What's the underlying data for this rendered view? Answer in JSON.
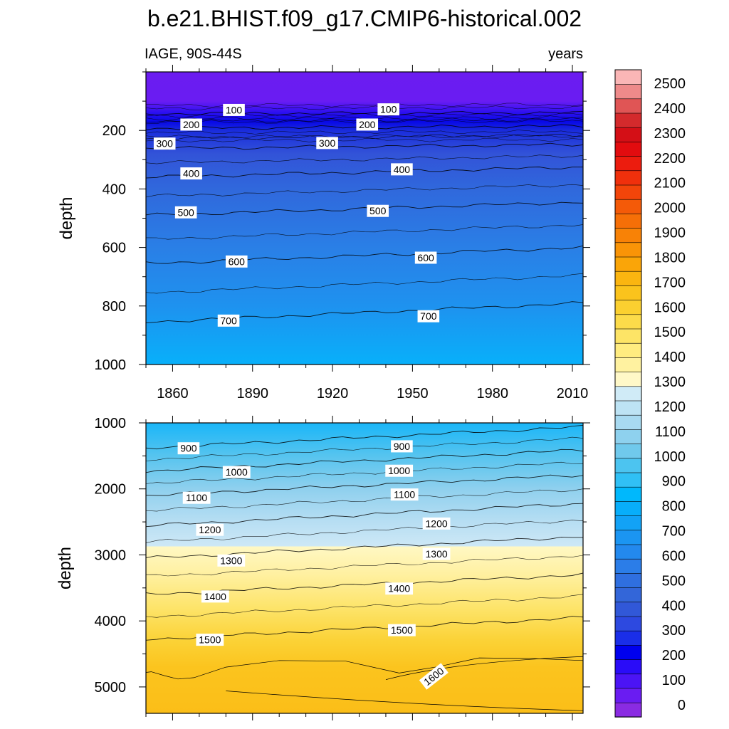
{
  "chart_data": {
    "type": "heatmap",
    "title": "b.e21.BHIST.f09_g17.CMIP6-historical.002",
    "left_subtitle": "IAGE, 90S-44S",
    "right_subtitle": "years",
    "xlabel": "",
    "xlim": [
      1850,
      2014
    ],
    "x_ticks": [
      1860,
      1890,
      1920,
      1950,
      1980,
      2010
    ],
    "x_tick_labels": [
      "1860",
      "1890",
      "1920",
      "1950",
      "1980",
      "2010"
    ],
    "colorbar": {
      "levels": [
        0,
        100,
        200,
        300,
        400,
        500,
        600,
        700,
        800,
        900,
        1000,
        1100,
        1200,
        1300,
        1400,
        1500,
        1600,
        1700,
        1800,
        1900,
        2000,
        2100,
        2200,
        2300,
        2400,
        2500
      ],
      "labels": [
        "0",
        "100",
        "200",
        "300",
        "400",
        "500",
        "600",
        "700",
        "800",
        "900",
        "1000",
        "1100",
        "1200",
        "1300",
        "1400",
        "1500",
        "1600",
        "1700",
        "1800",
        "1900",
        "2000",
        "2100",
        "2200",
        "2300",
        "2400",
        "2500"
      ],
      "colors": [
        "#8a2be2",
        "#6a1cf2",
        "#4b14f5",
        "#2a0cf8",
        "#0000ee",
        "#1a2ee8",
        "#2d49e0",
        "#3158d8",
        "#3366d9",
        "#2f6fe0",
        "#2b7de8",
        "#2389ee",
        "#1b95f2",
        "#12a2f6",
        "#08aefa",
        "#00b8fc",
        "#30c0f5",
        "#4cc4f0",
        "#70c9ec",
        "#8ed1ee",
        "#a8daf1",
        "#bde3f4",
        "#d0ebf7",
        "#fff8c8",
        "#fff2a0",
        "#ffec80",
        "#fde466",
        "#fcdb4a",
        "#fbd030",
        "#fbc31c",
        "#fbb510",
        "#faa508",
        "#f99407",
        "#f88206",
        "#f66f07",
        "#f45a08",
        "#f2450a",
        "#f0300c",
        "#ec1c0e",
        "#e20c0f",
        "#d40f16",
        "#d42a2c",
        "#e05555",
        "#ee8a8a",
        "#fab6b6"
      ]
    },
    "panels": [
      {
        "name": "upper",
        "ylabel": "depth",
        "ylim": [
          0,
          1000
        ],
        "y_ticks": [
          200,
          400,
          600,
          800,
          1000
        ],
        "y_tick_labels": [
          "200",
          "400",
          "600",
          "800",
          "1000"
        ],
        "fill_stops": [
          {
            "depth": 0,
            "color": "#6b1cf0"
          },
          {
            "depth": 100,
            "color": "#6a1cf2"
          },
          {
            "depth": 140,
            "color": "#2a10f0"
          },
          {
            "depth": 170,
            "color": "#0808e8"
          },
          {
            "depth": 200,
            "color": "#1a2cdc"
          },
          {
            "depth": 280,
            "color": "#3253d8"
          },
          {
            "depth": 400,
            "color": "#3068dc"
          },
          {
            "depth": 600,
            "color": "#2a7fe6"
          },
          {
            "depth": 800,
            "color": "#1e92ef"
          },
          {
            "depth": 1000,
            "color": "#08b0fa"
          }
        ],
        "contour_lines": [
          {
            "level": 100,
            "start_depth": 143,
            "end_depth": 140
          },
          {
            "level": 200,
            "start_depth": 193,
            "end_depth": 185
          },
          {
            "level": 300,
            "start_depth": 262,
            "end_depth": 248
          },
          {
            "level": 400,
            "start_depth": 360,
            "end_depth": 325
          },
          {
            "level": 500,
            "start_depth": 490,
            "end_depth": 445
          },
          {
            "level": 600,
            "start_depth": 655,
            "end_depth": 600
          },
          {
            "level": 700,
            "start_depth": 855,
            "end_depth": 790
          }
        ],
        "contour_labels": [
          {
            "text": "100",
            "x": 1883,
            "depth": 130
          },
          {
            "text": "100",
            "x": 1941,
            "depth": 128
          },
          {
            "text": "200",
            "x": 1867,
            "depth": 180
          },
          {
            "text": "200",
            "x": 1933,
            "depth": 180
          },
          {
            "text": "300",
            "x": 1857,
            "depth": 245
          },
          {
            "text": "300",
            "x": 1918,
            "depth": 243
          },
          {
            "text": "400",
            "x": 1867,
            "depth": 347
          },
          {
            "text": "400",
            "x": 1946,
            "depth": 333
          },
          {
            "text": "500",
            "x": 1865,
            "depth": 480
          },
          {
            "text": "500",
            "x": 1937,
            "depth": 475
          },
          {
            "text": "600",
            "x": 1884,
            "depth": 648
          },
          {
            "text": "600",
            "x": 1955,
            "depth": 635
          },
          {
            "text": "700",
            "x": 1881,
            "depth": 850
          },
          {
            "text": "700",
            "x": 1956,
            "depth": 835
          }
        ]
      },
      {
        "name": "lower",
        "ylabel": "depth",
        "ylim": [
          1000,
          5400
        ],
        "y_ticks": [
          1000,
          2000,
          3000,
          4000,
          5000
        ],
        "y_tick_labels": [
          "1000",
          "2000",
          "3000",
          "4000",
          "5000"
        ],
        "fill_stops": [
          {
            "depth": 1000,
            "color": "#1ab6f8"
          },
          {
            "depth": 1500,
            "color": "#56c4ef"
          },
          {
            "depth": 2000,
            "color": "#8fd0ee"
          },
          {
            "depth": 2500,
            "color": "#b7def3"
          },
          {
            "depth": 2870,
            "color": "#cde8f6"
          },
          {
            "depth": 2871,
            "color": "#fff8c4"
          },
          {
            "depth": 3300,
            "color": "#fff0a0"
          },
          {
            "depth": 3800,
            "color": "#fde46a"
          },
          {
            "depth": 4300,
            "color": "#fbd236"
          },
          {
            "depth": 4700,
            "color": "#fbc41e"
          },
          {
            "depth": 5400,
            "color": "#fbbe18"
          }
        ],
        "contour_lines": [
          {
            "level": 900,
            "start_depth": 1380,
            "end_depth": 1060
          },
          {
            "level": 1000,
            "start_depth": 1730,
            "end_depth": 1410
          },
          {
            "level": 1100,
            "start_depth": 2100,
            "end_depth": 1790
          },
          {
            "level": 1200,
            "start_depth": 2560,
            "end_depth": 2220
          },
          {
            "level": 1300,
            "start_depth": 3050,
            "end_depth": 2720
          },
          {
            "level": 1400,
            "start_depth": 3600,
            "end_depth": 3300
          },
          {
            "level": 1500,
            "start_depth": 4280,
            "end_depth": 3950
          }
        ],
        "contour_labels": [
          {
            "text": "900",
            "x": 1866,
            "depth": 1385
          },
          {
            "text": "900",
            "x": 1946,
            "depth": 1355
          },
          {
            "text": "1000",
            "x": 1884,
            "depth": 1745
          },
          {
            "text": "1000",
            "x": 1945,
            "depth": 1725
          },
          {
            "text": "1100",
            "x": 1869,
            "depth": 2135
          },
          {
            "text": "1100",
            "x": 1947,
            "depth": 2085
          },
          {
            "text": "1200",
            "x": 1874,
            "depth": 2620
          },
          {
            "text": "1200",
            "x": 1959,
            "depth": 2525
          },
          {
            "text": "1300",
            "x": 1882,
            "depth": 3085
          },
          {
            "text": "1300",
            "x": 1959,
            "depth": 2985
          },
          {
            "text": "1400",
            "x": 1876,
            "depth": 3630
          },
          {
            "text": "1400",
            "x": 1945,
            "depth": 3510
          },
          {
            "text": "1500",
            "x": 1874,
            "depth": 4285
          },
          {
            "text": "1500",
            "x": 1946,
            "depth": 4140
          },
          {
            "text": "1600",
            "x": 1958,
            "depth": 4840
          }
        ]
      }
    ]
  }
}
